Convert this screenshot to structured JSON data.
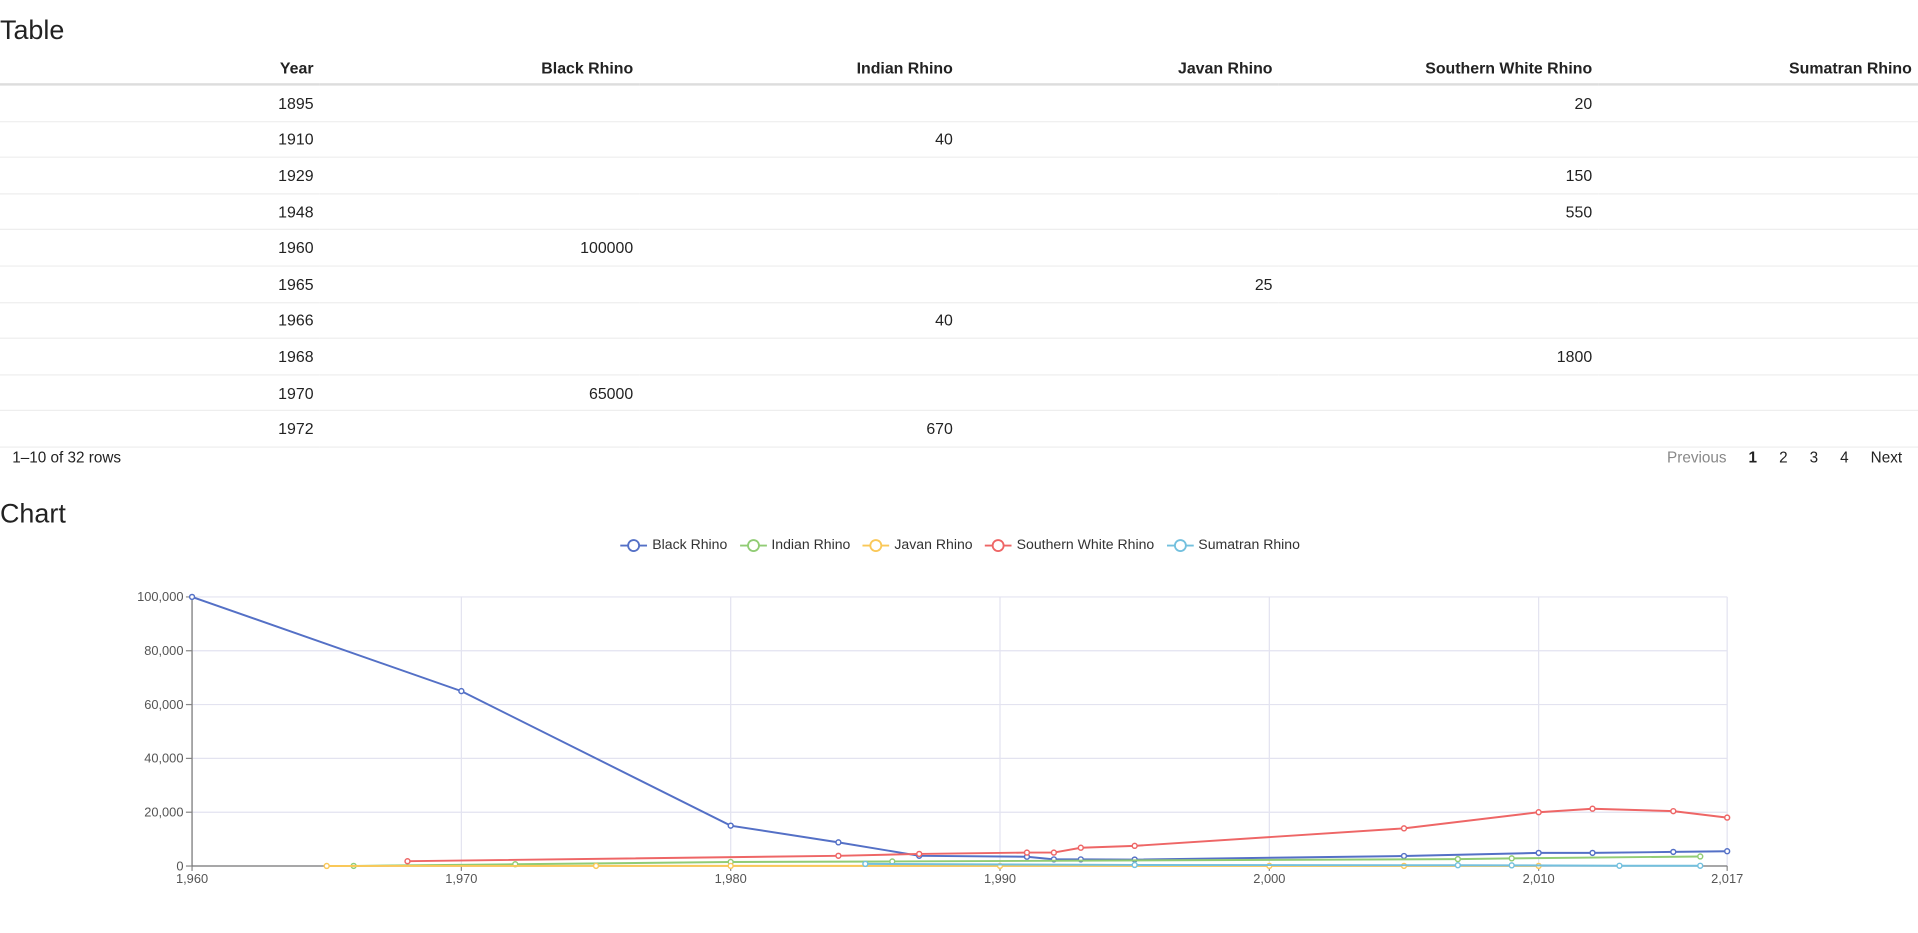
{
  "table": {
    "title": "Table",
    "columns": [
      "Year",
      "Black Rhino",
      "Indian Rhino",
      "Javan Rhino",
      "Southern White Rhino",
      "Sumatran Rhino"
    ],
    "rows": [
      [
        1895,
        null,
        null,
        null,
        20,
        null
      ],
      [
        1910,
        null,
        40,
        null,
        null,
        null
      ],
      [
        1929,
        null,
        null,
        null,
        150,
        null
      ],
      [
        1948,
        null,
        null,
        null,
        550,
        null
      ],
      [
        1960,
        100000,
        null,
        null,
        null,
        null
      ],
      [
        1965,
        null,
        null,
        25,
        null,
        null
      ],
      [
        1966,
        null,
        40,
        null,
        null,
        null
      ],
      [
        1968,
        null,
        null,
        null,
        1800,
        null
      ],
      [
        1970,
        65000,
        null,
        null,
        null,
        null
      ],
      [
        1972,
        null,
        670,
        null,
        null,
        null
      ]
    ],
    "footer": "1–10 of 32 rows",
    "pagination": [
      "Previous",
      "1",
      "2",
      "3",
      "4",
      "Next"
    ]
  },
  "chart_title": "Chart",
  "chart_data": {
    "type": "line",
    "xlim": [
      1960,
      2017
    ],
    "xticks": [
      {
        "value": 1960,
        "label": "1,960"
      },
      {
        "value": 1970,
        "label": "1,970"
      },
      {
        "value": 1980,
        "label": "1,980"
      },
      {
        "value": 1990,
        "label": "1,990"
      },
      {
        "value": 2000,
        "label": "2,000"
      },
      {
        "value": 2010,
        "label": "2,010"
      },
      {
        "value": 2017,
        "label": "2,017"
      }
    ],
    "ylim": [
      0,
      100000
    ],
    "yticks": [
      0,
      {
        "value": 20000,
        "label": "20,000"
      },
      {
        "value": 40000,
        "label": "40,000"
      },
      {
        "value": 60000,
        "label": "60,000"
      },
      {
        "value": 80000,
        "label": "80,000"
      },
      {
        "value": 100000,
        "label": "100,000"
      }
    ],
    "grid": true,
    "series": [
      {
        "name": "Black Rhino",
        "color": "#5470c6",
        "x": [
          1960,
          1970,
          1980,
          1984,
          1987,
          1991,
          1992,
          1993,
          1995,
          2005,
          2010,
          2012,
          2015,
          2017
        ],
        "values": [
          100000,
          65000,
          15000,
          8800,
          3800,
          3450,
          2475,
          2475,
          2410,
          3725,
          4880,
          4880,
          5250,
          5500
        ]
      },
      {
        "name": "Indian Rhino",
        "color": "#91cc75",
        "x": [
          1966,
          1972,
          1980,
          1986,
          2007,
          2009,
          2016
        ],
        "values": [
          40,
          670,
          1500,
          1700,
          2575,
          2850,
          3555
        ]
      },
      {
        "name": "Javan Rhino",
        "color": "#fac858",
        "x": [
          1965,
          1975,
          1980,
          1990,
          2000,
          2005,
          2010
        ],
        "values": [
          25,
          50,
          50,
          50,
          60,
          50,
          50
        ]
      },
      {
        "name": "Southern White Rhino",
        "color": "#ee6666",
        "x": [
          1968,
          1984,
          1987,
          1991,
          1992,
          1993,
          1995,
          2005,
          2010,
          2012,
          2015,
          2017
        ],
        "values": [
          1800,
          3800,
          4500,
          5000,
          5000,
          6800,
          7500,
          14000,
          20000,
          21300,
          20400,
          18000
        ]
      },
      {
        "name": "Sumatran Rhino",
        "color": "#73c0de",
        "x": [
          1985,
          1995,
          2007,
          2009,
          2013,
          2016
        ],
        "values": [
          800,
          400,
          300,
          250,
          100,
          100
        ]
      }
    ]
  }
}
